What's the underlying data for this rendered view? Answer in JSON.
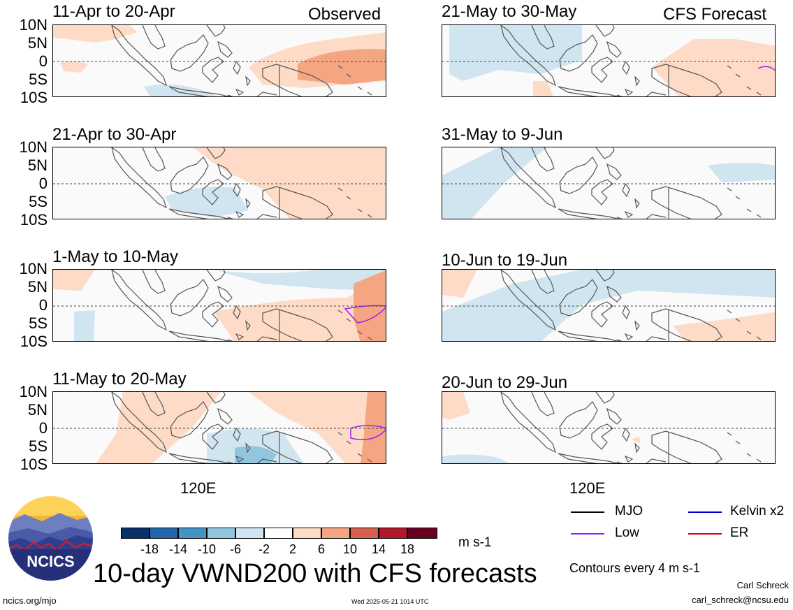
{
  "headers": {
    "left": "Observed",
    "right": "CFS Forecast"
  },
  "lat_labels": [
    "10N",
    "5N",
    "0",
    "5S",
    "10S"
  ],
  "panels": [
    {
      "title": "11-Apr to 20-Apr"
    },
    {
      "title": "21-Apr to 30-Apr"
    },
    {
      "title": "1-May to 10-May"
    },
    {
      "title": "11-May to 20-May"
    },
    {
      "title": "21-May to 30-May"
    },
    {
      "title": "31-May to 9-Jun"
    },
    {
      "title": "10-Jun to 19-Jun"
    },
    {
      "title": "20-Jun to 29-Jun"
    }
  ],
  "lon_label": "120E",
  "legend": {
    "items": [
      {
        "label": "MJO",
        "color": "#000000"
      },
      {
        "label": "Kelvin x2",
        "color": "#0000cc"
      },
      {
        "label": "Low",
        "color": "#a020f0"
      },
      {
        "label": "ER",
        "color": "#e00000"
      }
    ],
    "contour_note": "Contours every 4 m s-1"
  },
  "colorbar": {
    "ticks": [
      "-18",
      "-14",
      "-10",
      "-6",
      "-2",
      "2",
      "6",
      "10",
      "14",
      "18"
    ],
    "colors": [
      "#08306b",
      "#2166ac",
      "#4393c3",
      "#92c5de",
      "#d1e5f0",
      "#ffffff",
      "#fddbc7",
      "#f4a582",
      "#d6604d",
      "#b2182b",
      "#67001f"
    ],
    "unit": "m s-1"
  },
  "title": "10-day VWND200 with CFS forecasts",
  "logo_text": "NCICS",
  "footer": {
    "url": "ncics.org/mjo",
    "timestamp": "Wed 2025-05-21 1014 UTC",
    "author": "Carl Schreck",
    "email": "carl_schreck@ncsu.edu"
  }
}
